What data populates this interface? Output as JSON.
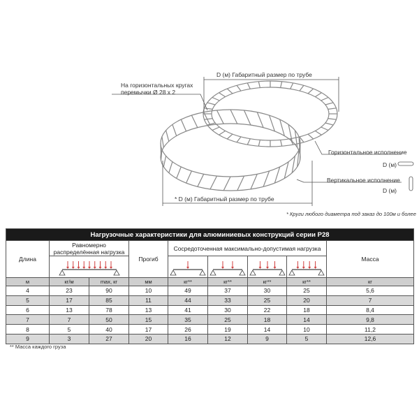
{
  "diagram": {
    "top_dimension": "D (м)  Габаритный размер по трубе",
    "bottom_dimension": "* D (м)  Габаритный размер по трубе",
    "crossbar_note_line1": "На горизонтальных кругах",
    "crossbar_note_line2": "перемычки Ø 28 x 2",
    "horizontal_label": "Горизонтальное исполнение",
    "vertical_label": "Вертикальное исполнение",
    "d_horizontal": "D (м)",
    "d_vertical": "D (м)",
    "custom_note": "* Круги любого диаметра под заказ до 100м и более",
    "line_color": "#888888"
  },
  "table": {
    "title": "Нагрузочные характеристики для алюминиевых конструкций серии P28",
    "headers": {
      "length": "Длина",
      "uniform_line1": "Равномерно",
      "uniform_line2": "распределённая нагрузка",
      "deflection": "Прогиб",
      "concentrated": "Сосредоточенная максимально-допустимая нагрузка",
      "mass": "Масса"
    },
    "load_point_counts": [
      1,
      2,
      3,
      4
    ],
    "units": [
      "м",
      "кг/м",
      "max, кг",
      "мм",
      "кг**",
      "кг**",
      "кг**",
      "кг**",
      "кг"
    ],
    "rows": [
      [
        "4",
        "23",
        "90",
        "10",
        "49",
        "37",
        "30",
        "25",
        "5,6"
      ],
      [
        "5",
        "17",
        "85",
        "11",
        "44",
        "33",
        "25",
        "20",
        "7"
      ],
      [
        "6",
        "13",
        "78",
        "13",
        "41",
        "30",
        "22",
        "18",
        "8,4"
      ],
      [
        "7",
        "7",
        "50",
        "15",
        "35",
        "25",
        "18",
        "14",
        "9,8"
      ],
      [
        "8",
        "5",
        "40",
        "17",
        "26",
        "19",
        "14",
        "10",
        "11,2"
      ],
      [
        "9",
        "3",
        "27",
        "20",
        "16",
        "12",
        "9",
        "5",
        "12,6"
      ]
    ],
    "footnote": "** Масса каждого груза",
    "arrow_color": "#d04040",
    "header_bg": "#1a1a1a",
    "stripe_bg": "#d9d9d9"
  }
}
